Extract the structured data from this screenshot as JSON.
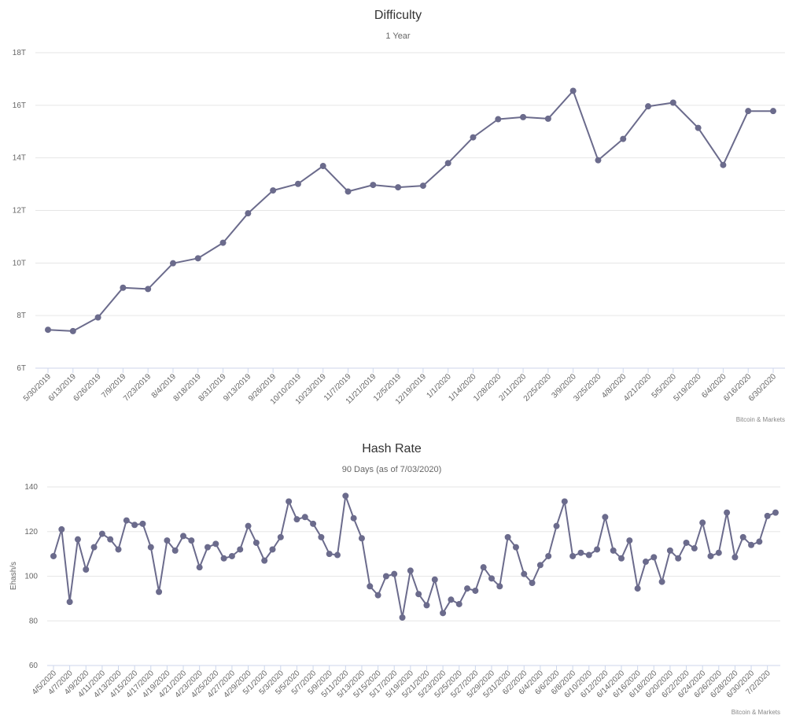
{
  "chart_data": [
    {
      "type": "line",
      "title": "Difficulty",
      "subtitle": "1 Year",
      "credit": "Bitcoin & Markets",
      "ylabel": "",
      "ylim": [
        6,
        18
      ],
      "yticks": [
        6,
        8,
        10,
        12,
        14,
        16,
        18
      ],
      "ytick_labels": [
        "6T",
        "8T",
        "10T",
        "12T",
        "14T",
        "16T",
        "18T"
      ],
      "categories": [
        "5/30/2019",
        "6/13/2019",
        "6/26/2019",
        "7/9/2019",
        "7/23/2019",
        "8/4/2019",
        "8/18/2019",
        "8/31/2019",
        "9/13/2019",
        "9/26/2019",
        "10/10/2019",
        "10/23/2019",
        "11/7/2019",
        "11/21/2019",
        "12/5/2019",
        "12/19/2019",
        "1/1/2020",
        "1/14/2020",
        "1/28/2020",
        "2/11/2020",
        "2/25/2020",
        "3/9/2020",
        "3/25/2020",
        "4/8/2020",
        "4/21/2020",
        "5/5/2020",
        "5/19/2020",
        "6/4/2020",
        "6/16/2020",
        "6/30/2020"
      ],
      "tick_labels": [
        "5/30/2019",
        "6/13/2019",
        "6/26/2019",
        "7/9/2019",
        "7/23/2019",
        "8/4/2019",
        "8/18/2019",
        "8/31/2019",
        "9/13/2019",
        "9/26/2019",
        "10/10/2019",
        "10/23/2019",
        "11/7/2019",
        "11/21/2019",
        "12/5/2019",
        "12/19/2019",
        "1/1/2020",
        "1/14/2020",
        "1/28/2020",
        "2/11/2020",
        "2/25/2020",
        "3/9/2020",
        "3/25/2020",
        "4/8/2020",
        "4/21/2020",
        "5/5/2020",
        "5/19/2020",
        "6/4/2020",
        "6/16/2020",
        "6/30/2020"
      ],
      "series": [
        {
          "values": [
            7.46,
            7.41,
            7.93,
            9.06,
            9.01,
            9.99,
            10.18,
            10.77,
            11.89,
            12.76,
            13.01,
            13.69,
            12.72,
            12.97,
            12.88,
            12.94,
            13.8,
            14.78,
            15.47,
            15.55,
            15.49,
            16.55,
            13.91,
            14.72,
            15.96,
            16.1,
            15.14,
            13.73,
            15.78,
            15.78
          ]
        }
      ],
      "grid": true,
      "legend": "none"
    },
    {
      "type": "line",
      "title": "Hash Rate",
      "subtitle": "90 Days (as of 7/03/2020)",
      "credit": "Bitcoin & Markets",
      "ylabel": "Ehash/s",
      "ylim": [
        60,
        140
      ],
      "yticks": [
        60,
        80,
        100,
        120,
        140
      ],
      "ytick_labels": [
        "60",
        "80",
        "100",
        "120",
        "140"
      ],
      "categories": [
        "4/5/2020",
        "4/6/2020",
        "4/7/2020",
        "4/8/2020",
        "4/9/2020",
        "4/10/2020",
        "4/11/2020",
        "4/12/2020",
        "4/13/2020",
        "4/14/2020",
        "4/15/2020",
        "4/16/2020",
        "4/17/2020",
        "4/18/2020",
        "4/19/2020",
        "4/20/2020",
        "4/21/2020",
        "4/22/2020",
        "4/23/2020",
        "4/24/2020",
        "4/25/2020",
        "4/26/2020",
        "4/27/2020",
        "4/28/2020",
        "4/29/2020",
        "4/30/2020",
        "5/1/2020",
        "5/2/2020",
        "5/3/2020",
        "5/4/2020",
        "5/5/2020",
        "5/6/2020",
        "5/7/2020",
        "5/8/2020",
        "5/9/2020",
        "5/10/2020",
        "5/11/2020",
        "5/12/2020",
        "5/13/2020",
        "5/14/2020",
        "5/15/2020",
        "5/16/2020",
        "5/17/2020",
        "5/18/2020",
        "5/19/2020",
        "5/20/2020",
        "5/21/2020",
        "5/22/2020",
        "5/23/2020",
        "5/24/2020",
        "5/25/2020",
        "5/26/2020",
        "5/27/2020",
        "5/28/2020",
        "5/29/2020",
        "5/30/2020",
        "5/31/2020",
        "6/1/2020",
        "6/2/2020",
        "6/3/2020",
        "6/4/2020",
        "6/5/2020",
        "6/6/2020",
        "6/7/2020",
        "6/8/2020",
        "6/9/2020",
        "6/10/2020",
        "6/11/2020",
        "6/12/2020",
        "6/13/2020",
        "6/14/2020",
        "6/15/2020",
        "6/16/2020",
        "6/17/2020",
        "6/18/2020",
        "6/19/2020",
        "6/20/2020",
        "6/21/2020",
        "6/22/2020",
        "6/23/2020",
        "6/24/2020",
        "6/25/2020",
        "6/26/2020",
        "6/27/2020",
        "6/28/2020",
        "6/29/2020",
        "6/30/2020",
        "7/1/2020",
        "7/2/2020",
        "7/3/2020"
      ],
      "tick_labels": [
        "4/5/2020",
        "4/7/2020",
        "4/9/2020",
        "4/11/2020",
        "4/13/2020",
        "4/15/2020",
        "4/17/2020",
        "4/19/2020",
        "4/21/2020",
        "4/23/2020",
        "4/25/2020",
        "4/27/2020",
        "4/29/2020",
        "5/1/2020",
        "5/3/2020",
        "5/5/2020",
        "5/7/2020",
        "5/9/2020",
        "5/11/2020",
        "5/13/2020",
        "5/15/2020",
        "5/17/2020",
        "5/19/2020",
        "5/21/2020",
        "5/23/2020",
        "5/25/2020",
        "5/27/2020",
        "5/29/2020",
        "5/31/2020",
        "6/2/2020",
        "6/4/2020",
        "6/6/2020",
        "6/8/2020",
        "6/10/2020",
        "6/12/2020",
        "6/14/2020",
        "6/16/2020",
        "6/18/2020",
        "6/20/2020",
        "6/22/2020",
        "6/24/2020",
        "6/26/2020",
        "6/28/2020",
        "6/30/2020",
        "7/2/2020"
      ],
      "series": [
        {
          "values": [
            109,
            121,
            88.5,
            116.5,
            103,
            113,
            119,
            116.5,
            112,
            125,
            123,
            123.5,
            113,
            93,
            116,
            111.5,
            118,
            116,
            104,
            113,
            114.5,
            108,
            109,
            112,
            122.5,
            115,
            107,
            112,
            117.5,
            133.5,
            125.5,
            126.5,
            123.5,
            117.5,
            110,
            109.5,
            136,
            126,
            117,
            95.5,
            91.5,
            100,
            101,
            81.5,
            102.5,
            92,
            87,
            98.5,
            83.5,
            89.5,
            87.5,
            94.5,
            93.5,
            104,
            99,
            95.5,
            117.5,
            113,
            101,
            97,
            105,
            109,
            122.5,
            133.5,
            109,
            110.5,
            109.5,
            112,
            126.5,
            111.5,
            108,
            116,
            94.5,
            106.5,
            108.5,
            97.5,
            111.5,
            108,
            115,
            112.5,
            124,
            109,
            110.5,
            128.5,
            108.5,
            117.5,
            114,
            115.5,
            127,
            128.5
          ]
        }
      ],
      "grid": true,
      "legend": "none"
    }
  ],
  "colors": {
    "series": "#6b6b8c",
    "grid": "#e6e6e6",
    "axis": "#ccd6eb"
  }
}
